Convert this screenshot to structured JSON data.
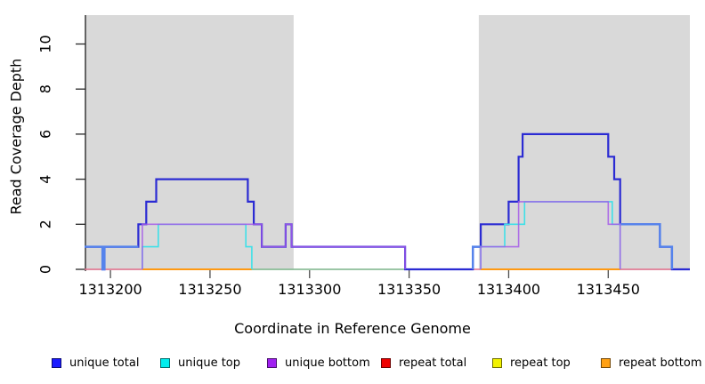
{
  "figure": {
    "background": "#ffffff",
    "plot_background_shaded": "#d9d9d9"
  },
  "chart_data": {
    "type": "line",
    "subtype": "step-coverage",
    "title": "",
    "xlabel": "Coordinate in Reference Genome",
    "ylabel": "Read Coverage Depth",
    "xlim": [
      1313187,
      1313491
    ],
    "ylim": [
      0,
      11.3
    ],
    "x_ticks": [
      1313200,
      1313250,
      1313300,
      1313350,
      1313400,
      1313450
    ],
    "y_ticks": [
      0,
      2,
      4,
      6,
      8,
      10
    ],
    "grid": false,
    "legend_position": "bottom",
    "shaded_regions": [
      {
        "name": "left-repeat-panel",
        "x0": 1313187,
        "x1": 1313292,
        "color": "#d9d9d9"
      },
      {
        "name": "right-repeat-panel",
        "x0": 1313385,
        "x1": 1313491,
        "color": "#d9d9d9"
      }
    ],
    "series": [
      {
        "name": "repeat total baseline",
        "color": "#e4708e",
        "width": 1.6,
        "opacity": 1,
        "segments": [
          [
            [
              1313187,
              0
            ],
            [
              1313491,
              0
            ]
          ]
        ]
      },
      {
        "name": "repeat top",
        "color": "#f0e90a",
        "width": 1.6,
        "opacity": 1,
        "segments": [
          [
            [
              1313216,
              0
            ],
            [
              1313271,
              0
            ]
          ],
          [
            [
              1313386,
              0
            ],
            [
              1313456,
              0
            ]
          ]
        ]
      },
      {
        "name": "repeat bottom",
        "color": "#ff9912",
        "width": 2,
        "opacity": 1,
        "segments": [
          [
            [
              1313216,
              0
            ],
            [
              1313271,
              0
            ]
          ],
          [
            [
              1313386,
              0
            ],
            [
              1313456,
              0
            ]
          ]
        ]
      },
      {
        "name": "top-strand overlap baseline",
        "color": "#7fcb9b",
        "width": 1.6,
        "opacity": 1,
        "segments": [
          [
            [
              1313271,
              0
            ],
            [
              1313382,
              0
            ]
          ]
        ]
      },
      {
        "name": "unique total",
        "color": "#2b2bd3",
        "width": 2.2,
        "opacity": 1,
        "segments": [
          [
            [
              1313187,
              1
            ],
            [
              1313196,
              1
            ],
            [
              1313196,
              0
            ],
            [
              1313197,
              0
            ],
            [
              1313197,
              1
            ],
            [
              1313214,
              1
            ],
            [
              1313214,
              2
            ],
            [
              1313218,
              2
            ],
            [
              1313218,
              3
            ],
            [
              1313223,
              3
            ],
            [
              1313223,
              4
            ],
            [
              1313269,
              4
            ],
            [
              1313269,
              3
            ],
            [
              1313272,
              3
            ],
            [
              1313272,
              2
            ],
            [
              1313276,
              2
            ],
            [
              1313276,
              1
            ],
            [
              1313288,
              1
            ],
            [
              1313288,
              2
            ],
            [
              1313291,
              2
            ],
            [
              1313291,
              1
            ],
            [
              1313348,
              1
            ],
            [
              1313348,
              0
            ],
            [
              1313382,
              0
            ],
            [
              1313382,
              1
            ],
            [
              1313386,
              1
            ],
            [
              1313386,
              2
            ],
            [
              1313400,
              2
            ],
            [
              1313400,
              3
            ],
            [
              1313405,
              3
            ],
            [
              1313405,
              5
            ],
            [
              1313407,
              5
            ],
            [
              1313407,
              6
            ],
            [
              1313450,
              6
            ],
            [
              1313450,
              5
            ],
            [
              1313453,
              5
            ],
            [
              1313453,
              4
            ],
            [
              1313456,
              4
            ],
            [
              1313456,
              2
            ],
            [
              1313476,
              2
            ],
            [
              1313476,
              1
            ],
            [
              1313482,
              1
            ],
            [
              1313482,
              0
            ],
            [
              1313491,
              0
            ]
          ]
        ]
      },
      {
        "name": "unique total light overlay",
        "color": "#5583ec",
        "width": 2.4,
        "opacity": 1,
        "segments": [
          [
            [
              1313187,
              1
            ],
            [
              1313196,
              1
            ],
            [
              1313196,
              0
            ],
            [
              1313197,
              0
            ],
            [
              1313197,
              1
            ],
            [
              1313214,
              1
            ]
          ],
          [
            [
              1313382,
              0
            ],
            [
              1313382,
              1
            ],
            [
              1313386,
              1
            ]
          ],
          [
            [
              1313456,
              2
            ],
            [
              1313476,
              2
            ],
            [
              1313476,
              1
            ],
            [
              1313482,
              1
            ],
            [
              1313482,
              0
            ]
          ]
        ]
      },
      {
        "name": "unique top",
        "color": "#3fe0e8",
        "width": 1.6,
        "opacity": 1,
        "segments": [
          [
            [
              1313216,
              0
            ],
            [
              1313216,
              1
            ],
            [
              1313224,
              1
            ],
            [
              1313224,
              2
            ],
            [
              1313268,
              2
            ],
            [
              1313268,
              1
            ],
            [
              1313271,
              1
            ],
            [
              1313271,
              0
            ]
          ],
          [
            [
              1313386,
              0
            ],
            [
              1313386,
              1
            ],
            [
              1313398,
              1
            ],
            [
              1313398,
              2
            ],
            [
              1313408,
              2
            ],
            [
              1313408,
              3
            ],
            [
              1313452,
              3
            ],
            [
              1313452,
              2
            ],
            [
              1313456,
              2
            ],
            [
              1313456,
              0
            ]
          ]
        ]
      },
      {
        "name": "unique bottom",
        "color": "#a55ce8",
        "width": 1.6,
        "opacity": 0.85,
        "segments": [
          [
            [
              1313216,
              0
            ],
            [
              1313216,
              2
            ],
            [
              1313276,
              2
            ],
            [
              1313276,
              1
            ],
            [
              1313288,
              1
            ],
            [
              1313288,
              2
            ],
            [
              1313291,
              2
            ],
            [
              1313291,
              1
            ],
            [
              1313348,
              1
            ],
            [
              1313348,
              0
            ]
          ],
          [
            [
              1313386,
              0
            ],
            [
              1313386,
              1
            ],
            [
              1313405,
              1
            ],
            [
              1313405,
              3
            ],
            [
              1313450,
              3
            ],
            [
              1313450,
              2
            ],
            [
              1313456,
              2
            ],
            [
              1313456,
              0
            ]
          ]
        ]
      }
    ],
    "legend": [
      {
        "label": "unique total",
        "fill": "#1a1aff"
      },
      {
        "label": "unique top",
        "fill": "#00eeee"
      },
      {
        "label": "unique bottom",
        "fill": "#a020f0"
      },
      {
        "label": "repeat total",
        "fill": "#ee0000"
      },
      {
        "label": "repeat top",
        "fill": "#f2f200"
      },
      {
        "label": "repeat bottom",
        "fill": "#ffa013"
      }
    ]
  }
}
